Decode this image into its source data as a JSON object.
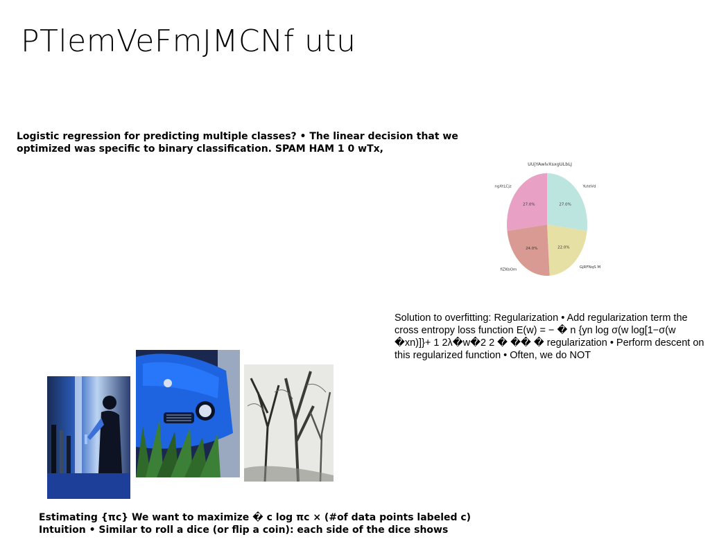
{
  "slide": {
    "title": "PTlemVeFmJMCNf utu"
  },
  "text_top": "Logistic regression for predicting multiple classes? • The linear decision that we optimized was specific to binary classification. SPAM HAM 1 0 wTx,",
  "text_right": "Solution to overfitting: Regularization • Add regularization term the cross entropy loss function E(w) = − � n {yn log σ(w log[1−σ(w �xn)]}+ 1 2λ�w�2 2 � �� � regularization • Perform descent on this regularized function • Often, we do NOT",
  "text_bottom": "Estimating {πc} We want to maximize � c log πc × (#of data points labeled c) Intuition • Similar to roll a dice (or flip a coin): each side of the dice shows",
  "chart_data": {
    "type": "pie",
    "title": "UUjYAwlvXsxgULbLJ",
    "slices": [
      {
        "label": "YuteVd",
        "value": 27.0,
        "pct_label": "27.0%",
        "color": "#bde5e0"
      },
      {
        "label": "GjRFNqS M",
        "value": 22.0,
        "pct_label": "22.0%",
        "color": "#e6e0a4"
      },
      {
        "label": "fiZKbOm",
        "value": 24.0,
        "pct_label": "24.0%",
        "color": "#d99a94"
      },
      {
        "label": "ngXtLCjz",
        "value": 27.0,
        "pct_label": "27.0%",
        "color": "#e8a0c4"
      }
    ],
    "start_angle_deg": 90,
    "direction": "clockwise",
    "legend": "none"
  },
  "images": [
    {
      "name": "laboratory photo",
      "colors": [
        "#0e1c3a",
        "#2a5cc8",
        "#dfe9f7"
      ]
    },
    {
      "name": "blue car photo",
      "colors": [
        "#0a1a44",
        "#1e64e0",
        "#2f5a2a"
      ]
    },
    {
      "name": "bare trees photo",
      "colors": [
        "#e4e4e0",
        "#3a3a36",
        "#8a8a86"
      ]
    }
  ]
}
